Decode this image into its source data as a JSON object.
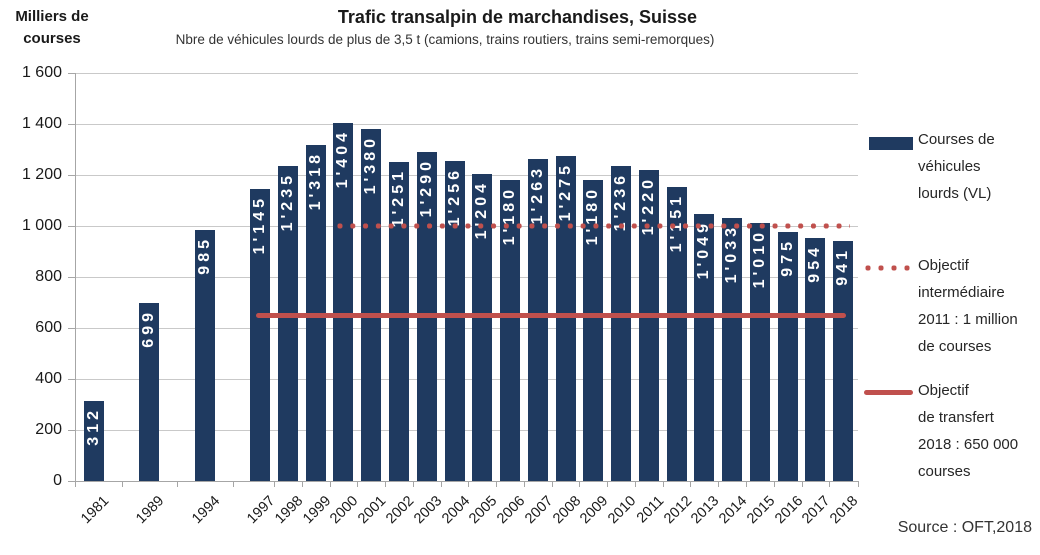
{
  "source": "Source : OFT,2018",
  "legend": [
    {
      "swatch": "bar",
      "lines": [
        "Courses de",
        "véhicules",
        "lourds (VL)"
      ]
    },
    {
      "swatch": "dotted-line",
      "lines": [
        "Objectif",
        "intermédiaire",
        "2011 : 1 million",
        "de courses"
      ]
    },
    {
      "swatch": "solid-line",
      "lines": [
        "Objectif",
        "de transfert",
        "2018 : 650 000",
        "courses"
      ]
    }
  ],
  "chart_data": {
    "type": "bar",
    "title": "Trafic transalpin de marchandises, Suisse",
    "subtitle": "Nbre de véhicules lourds de plus de 3,5 t (camions, trains routiers, trains semi-remorques)",
    "ylabel_lines": [
      "Milliers de",
      "courses"
    ],
    "categories": [
      "1981",
      "1989",
      "1994",
      "1997",
      "1998",
      "1999",
      "2000",
      "2001",
      "2002",
      "2003",
      "2004",
      "2005",
      "2006",
      "2007",
      "2008",
      "2009",
      "2010",
      "2011",
      "2012",
      "2013",
      "2014",
      "2015",
      "2016",
      "2017",
      "2018"
    ],
    "values": [
      312,
      699,
      985,
      1145,
      1235,
      1318,
      1404,
      1380,
      1251,
      1290,
      1256,
      1204,
      1180,
      1263,
      1275,
      1180,
      1236,
      1220,
      1151,
      1049,
      1033,
      1010,
      975,
      954,
      941
    ],
    "bar_labels": [
      "312",
      "699",
      "985",
      "1'145",
      "1'235",
      "1'318",
      "1'404",
      "1'380",
      "1'251",
      "1'290",
      "1'256",
      "1'204",
      "1'180",
      "1'263",
      "1'275",
      "1'180",
      "1'236",
      "1'220",
      "1'151",
      "1'049",
      "1'033",
      "1'010",
      "975",
      "954",
      "941"
    ],
    "ylim": [
      0,
      1600
    ],
    "ytick_interval": 200,
    "ytick_labels": [
      "0",
      "200",
      "400",
      "600",
      "800",
      "1 000",
      "1 200",
      "1 400",
      "1 600"
    ],
    "grid": "horizontal",
    "legend_position": "right",
    "reference_lines": [
      {
        "label": "Objectif intermédiaire 2011 : 1 million de courses",
        "value": 1000,
        "style": "dotted",
        "start_category": "2000"
      },
      {
        "label": "Objectif de transfert 2018 : 650 000 courses",
        "value": 650,
        "style": "solid",
        "start_category": "1997"
      }
    ],
    "colors": {
      "bar": "#1f3a60",
      "reference": "#c0504d",
      "grid": "#c9c9c9",
      "axis": "#a6a6a6",
      "bar_label": "#ffffff"
    }
  }
}
